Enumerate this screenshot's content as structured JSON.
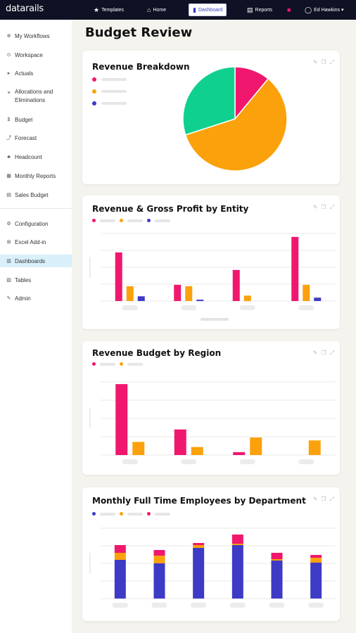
{
  "app": {
    "logo": "datarails"
  },
  "topnav": [
    {
      "icon": "★",
      "label": "Templates"
    },
    {
      "icon": "⌂",
      "label": "Home"
    },
    {
      "icon": "▮",
      "label": "Dashboard"
    },
    {
      "icon": "▤",
      "label": "Reports"
    },
    {
      "icon": "■",
      "label": ""
    },
    {
      "icon": "◯",
      "label": "Ed Hawkins ▾"
    }
  ],
  "sidebar": {
    "items": [
      {
        "icon": "⊕",
        "label": "My Workflows"
      },
      {
        "icon": "⊙",
        "label": "Workspace"
      },
      {
        "icon": "▸",
        "label": "Actuals"
      },
      {
        "icon": "≡",
        "label": "Allocations and Eliminations"
      },
      {
        "icon": "$",
        "label": "Budget"
      },
      {
        "icon": "⤴",
        "label": "Forecast"
      },
      {
        "icon": "♣",
        "label": "Headcount"
      },
      {
        "icon": "▦",
        "label": "Monthly Reports"
      },
      {
        "icon": "▤",
        "label": "Sales Budget"
      },
      {
        "icon": "⚙",
        "label": "Configuration"
      },
      {
        "icon": "⊞",
        "label": "Excel Add-in"
      },
      {
        "icon": "▥",
        "label": "Dashboards"
      },
      {
        "icon": "▧",
        "label": "Tables"
      },
      {
        "icon": "✎",
        "label": "Admin"
      }
    ]
  },
  "page": {
    "title": "Budget Review"
  },
  "tools": {
    "edit": "✎",
    "copy": "❐",
    "expand": "⤢"
  },
  "colors": {
    "pink": "#f0176e",
    "orange": "#fba10b",
    "blue": "#3d3ac6",
    "green": "#10d08f"
  },
  "chart_data": [
    {
      "type": "pie",
      "title": "Revenue Breakdown",
      "slices": [
        {
          "name": "",
          "value": 11,
          "color": "#f0176e"
        },
        {
          "name": "",
          "value": 59,
          "color": "#fba10b"
        },
        {
          "name": "",
          "value": 30,
          "color": "#10d08f"
        }
      ],
      "legend_colors": [
        "#f0176e",
        "#fba10b",
        "#3d3ac6"
      ]
    },
    {
      "type": "bar",
      "title": "Revenue & Gross Profit by Entity",
      "categories": [
        "",
        "",
        "",
        ""
      ],
      "series": [
        {
          "color": "#f0176e",
          "values": [
            72,
            24,
            46,
            95
          ]
        },
        {
          "color": "#fba10b",
          "values": [
            22,
            22,
            8,
            24
          ]
        },
        {
          "color": "#3d3ac6",
          "values": [
            7,
            2,
            0,
            5
          ]
        }
      ],
      "ylim": [
        0,
        100
      ],
      "grid": true
    },
    {
      "type": "bar",
      "title": "Revenue Budget by Region",
      "categories": [
        "",
        "",
        "",
        ""
      ],
      "series": [
        {
          "color": "#f0176e",
          "values": [
            97,
            35,
            4,
            0
          ]
        },
        {
          "color": "#fba10b",
          "values": [
            18,
            11,
            24,
            20
          ]
        }
      ],
      "ylim": [
        0,
        100
      ],
      "grid": true
    },
    {
      "type": "bar",
      "stacked": true,
      "title": "Monthly Full Time Employees by Department",
      "categories": [
        "",
        "",
        "",
        "",
        "",
        ""
      ],
      "series": [
        {
          "color": "#3d3ac6",
          "values": [
            55,
            50,
            72,
            76,
            54,
            51
          ]
        },
        {
          "color": "#fba10b",
          "values": [
            10,
            11,
            4,
            2,
            2,
            7
          ]
        },
        {
          "color": "#f0176e",
          "values": [
            11,
            8,
            3,
            13,
            9,
            4
          ]
        }
      ],
      "ylim": [
        0,
        100
      ],
      "grid": true
    }
  ]
}
